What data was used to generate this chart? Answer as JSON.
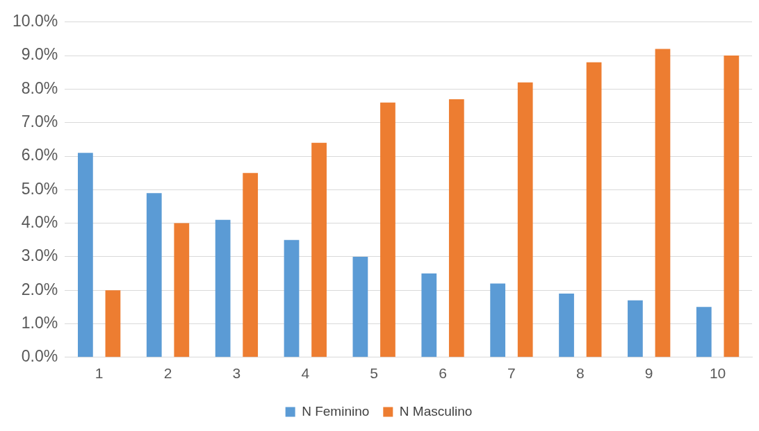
{
  "chart_data": {
    "type": "bar",
    "categories": [
      "1",
      "2",
      "3",
      "4",
      "5",
      "6",
      "7",
      "8",
      "9",
      "10"
    ],
    "series": [
      {
        "name": "N Feminino",
        "color": "#5b9bd5",
        "values": [
          6.1,
          4.9,
          4.1,
          3.5,
          3.0,
          2.5,
          2.2,
          1.9,
          1.7,
          1.5
        ]
      },
      {
        "name": "N Masculino",
        "color": "#ed7d31",
        "values": [
          2.0,
          4.0,
          5.5,
          6.4,
          7.6,
          7.7,
          8.2,
          8.8,
          9.2,
          9.0
        ]
      }
    ],
    "ylim": [
      0,
      10
    ],
    "yticks": [
      {
        "value": 0,
        "label": "0.0%"
      },
      {
        "value": 1,
        "label": "1.0%"
      },
      {
        "value": 2,
        "label": "2.0%"
      },
      {
        "value": 3,
        "label": "3.0%"
      },
      {
        "value": 4,
        "label": "4.0%"
      },
      {
        "value": 5,
        "label": "5.0%"
      },
      {
        "value": 6,
        "label": "6.0%"
      },
      {
        "value": 7,
        "label": "7.0%"
      },
      {
        "value": 8,
        "label": "8.0%"
      },
      {
        "value": 9,
        "label": "9.0%"
      },
      {
        "value": 10,
        "label": "10.0%"
      }
    ],
    "grid": "y",
    "legend": "bottom"
  }
}
